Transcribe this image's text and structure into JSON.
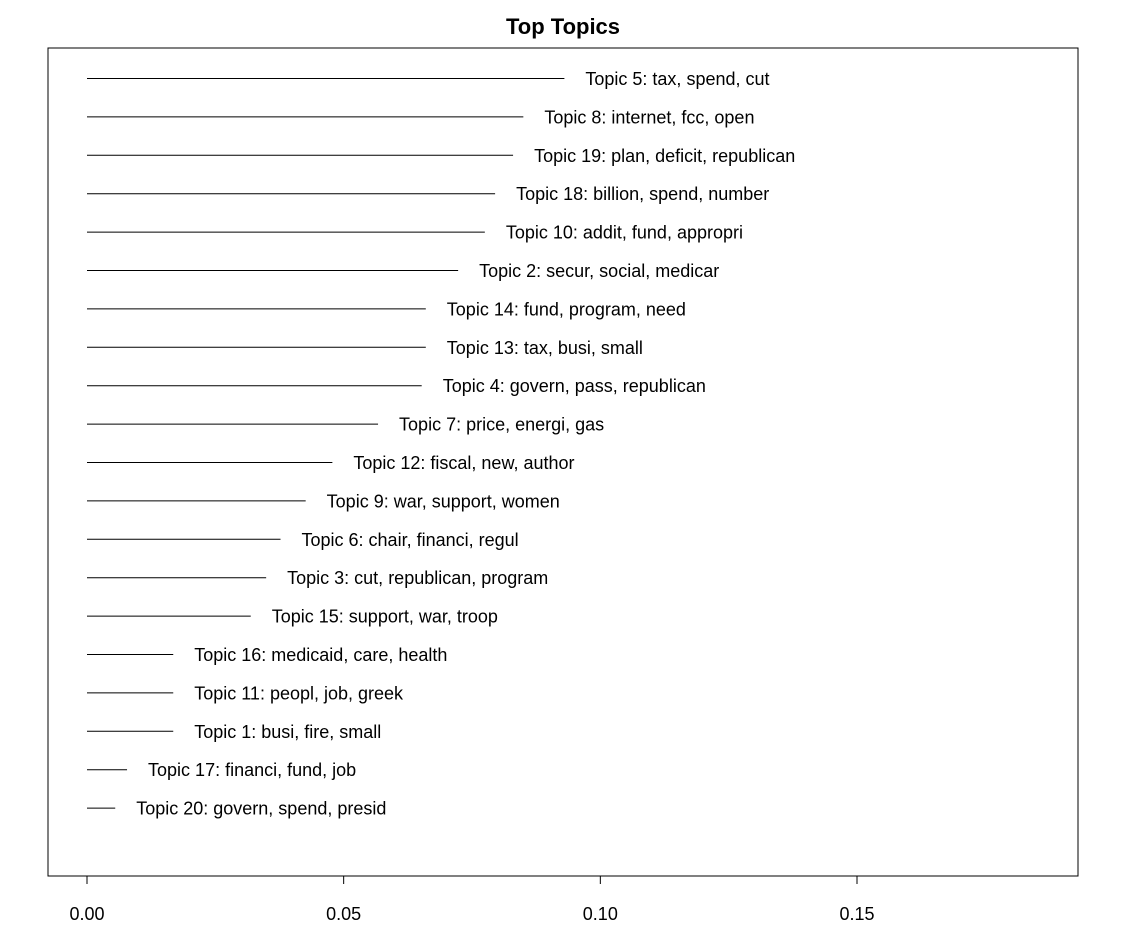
{
  "chart_data": {
    "type": "bar",
    "orientation": "horizontal",
    "style": "line-segments-with-labels",
    "title": "Top Topics",
    "xlabel": "",
    "ylabel": "",
    "xlim": [
      0.0,
      0.19
    ],
    "xticks": [
      0.0,
      0.05,
      0.1,
      0.15
    ],
    "xtick_labels": [
      "0.00",
      "0.05",
      "0.10",
      "0.15"
    ],
    "grid": false,
    "series": [
      {
        "label": "Topic 5: tax, spend, cut",
        "value": 0.093
      },
      {
        "label": "Topic 8: internet, fcc, open",
        "value": 0.085
      },
      {
        "label": "Topic 19: plan, deficit, republican",
        "value": 0.083
      },
      {
        "label": "Topic 18: billion, spend, number",
        "value": 0.0795
      },
      {
        "label": "Topic 10: addit, fund, appropri",
        "value": 0.0775
      },
      {
        "label": "Topic 2: secur, social, medicar",
        "value": 0.0723
      },
      {
        "label": "Topic 14: fund, program, need",
        "value": 0.066
      },
      {
        "label": "Topic 13: tax, busi, small",
        "value": 0.066
      },
      {
        "label": "Topic 4: govern, pass, republican",
        "value": 0.0652
      },
      {
        "label": "Topic 7: price, energi, gas",
        "value": 0.0567
      },
      {
        "label": "Topic 12: fiscal, new, author",
        "value": 0.0478
      },
      {
        "label": "Topic 9: war, support, women",
        "value": 0.0426
      },
      {
        "label": "Topic 6: chair, financi, regul",
        "value": 0.0377
      },
      {
        "label": "Topic 3: cut, republican, program",
        "value": 0.0349
      },
      {
        "label": "Topic 15: support, war, troop",
        "value": 0.0319
      },
      {
        "label": "Topic 16: medicaid, care, health",
        "value": 0.0168
      },
      {
        "label": "Topic 11: peopl, job, greek",
        "value": 0.0168
      },
      {
        "label": "Topic 1: busi, fire, small",
        "value": 0.0168
      },
      {
        "label": "Topic 17: financi, fund, job",
        "value": 0.0078
      },
      {
        "label": "Topic 20: govern, spend, presid",
        "value": 0.0055
      }
    ]
  }
}
